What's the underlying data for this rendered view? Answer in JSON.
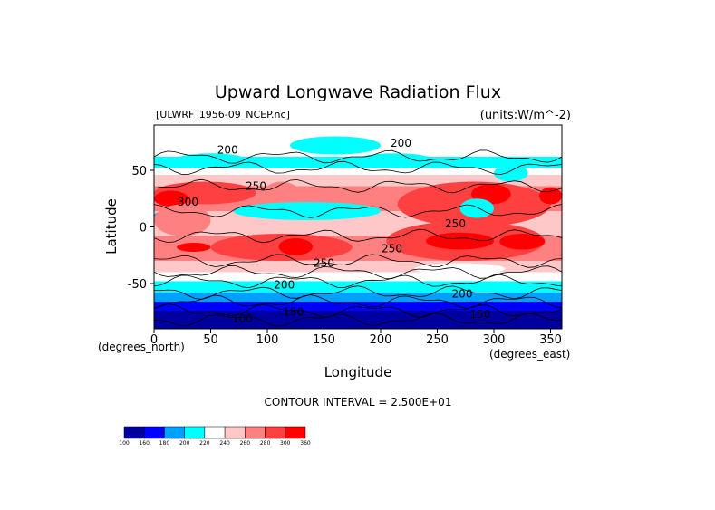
{
  "title": "Upward Longwave Radiation Flux",
  "file_label": "[ULWRF_1956-09_NCEP.nc]",
  "units_label": "(units:W/m^-2)",
  "contour_interval": "CONTOUR INTERVAL = 2.500E+01",
  "chart_data": {
    "type": "heatmap",
    "title": "Upward Longwave Radiation Flux",
    "xlabel": "Longitude",
    "ylabel": "Latitude",
    "x_unit_label": "(degrees_east)",
    "y_unit_label": "(degrees_north)",
    "xlim": [
      0,
      360
    ],
    "ylim": [
      -90,
      90
    ],
    "x_ticks": [
      0,
      50,
      100,
      150,
      200,
      250,
      300,
      350
    ],
    "y_ticks": [
      50,
      0,
      -50
    ],
    "levels": [
      100,
      160,
      180,
      200,
      220,
      240,
      260,
      280,
      300,
      360
    ],
    "colorbar_labels": [
      "100",
      "160",
      "180",
      "200",
      "220",
      "240",
      "260",
      "280",
      "300",
      "360"
    ],
    "colors": [
      "#0000a0",
      "#0000ff",
      "#00a0ff",
      "#00ffff",
      "#ffffff",
      "#ffc8c8",
      "#ff8080",
      "#ff4040",
      "#ff0000"
    ],
    "contour_labels": [
      {
        "text": "200",
        "lon": 65,
        "lat": 68
      },
      {
        "text": "200",
        "lon": 218,
        "lat": 74
      },
      {
        "text": "250",
        "lon": 90,
        "lat": 36
      },
      {
        "text": "300",
        "lon": 30,
        "lat": 22
      },
      {
        "text": "250",
        "lon": 266,
        "lat": 3
      },
      {
        "text": "250",
        "lon": 210,
        "lat": -19
      },
      {
        "text": "250",
        "lon": 150,
        "lat": -32
      },
      {
        "text": "200",
        "lon": 115,
        "lat": -51
      },
      {
        "text": "200",
        "lon": 272,
        "lat": -59
      },
      {
        "text": "150",
        "lon": 123,
        "lat": -75
      },
      {
        "text": "150",
        "lon": 288,
        "lat": -77
      },
      {
        "text": "100",
        "lon": 78,
        "lat": -81
      }
    ]
  }
}
